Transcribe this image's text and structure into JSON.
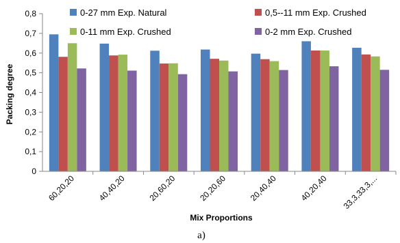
{
  "chart_data": {
    "type": "bar",
    "categories": [
      "60,20,20",
      "40,40,20",
      "20,60,20",
      "20,20,60",
      "20,40,40",
      "40,20,40",
      "33,3,33,3,..."
    ],
    "series": [
      {
        "name": "0-27 mm Exp. Natural",
        "color": "#4F81BD",
        "values": [
          0.695,
          0.648,
          0.612,
          0.618,
          0.597,
          0.66,
          0.627
        ]
      },
      {
        "name": "0,5--11 mm Exp. Crushed",
        "color": "#C0504D",
        "values": [
          0.581,
          0.588,
          0.547,
          0.571,
          0.569,
          0.613,
          0.593
        ]
      },
      {
        "name": "0-11 mm Exp. Crushed",
        "color": "#9BBB59",
        "values": [
          0.65,
          0.592,
          0.548,
          0.562,
          0.559,
          0.613,
          0.583
        ]
      },
      {
        "name": "0-2 mm Exp. Crushed",
        "color": "#8064A2",
        "values": [
          0.522,
          0.511,
          0.493,
          0.507,
          0.514,
          0.533,
          0.515
        ]
      }
    ],
    "ylabel": "Packing degree",
    "xlabel": "Mix Proportions",
    "ylim": [
      0,
      0.8
    ],
    "yticks": [
      "0",
      "0,1",
      "0,2",
      "0,3",
      "0,4",
      "0,5",
      "0,6",
      "0,7",
      "0,8"
    ],
    "grid": false,
    "legend": "top",
    "caption": "a)"
  }
}
